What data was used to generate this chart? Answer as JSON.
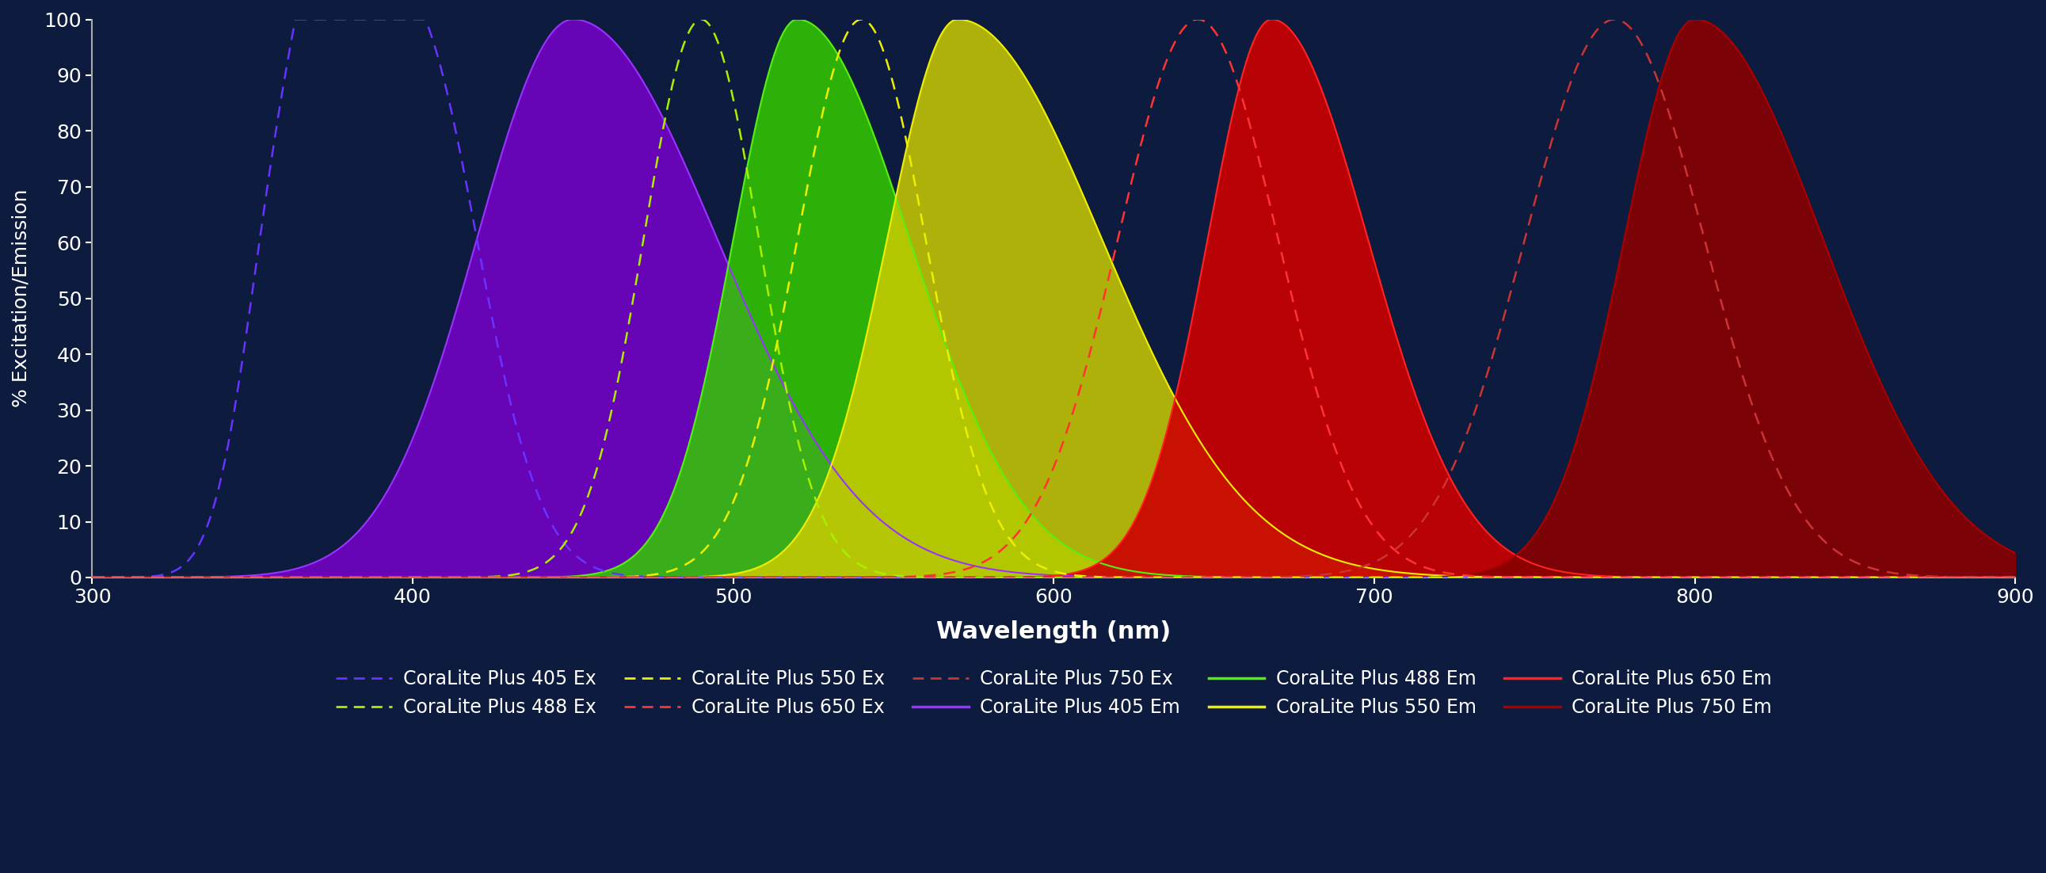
{
  "background_color": "#0d1b3e",
  "plot_bg_color": "#0d1b3e",
  "title": "",
  "xlabel": "Wavelength (nm)",
  "ylabel": "% Excitation/Emission",
  "xlim": [
    300,
    900
  ],
  "ylim": [
    0,
    100
  ],
  "xticks": [
    300,
    400,
    500,
    600,
    700,
    800,
    900
  ],
  "yticks": [
    0,
    10,
    20,
    30,
    40,
    50,
    60,
    70,
    80,
    90,
    100
  ],
  "legend_items": [
    {
      "label": "CoraLite Plus 405 Ex",
      "color": "#7b2fff",
      "linestyle": "dashed"
    },
    {
      "label": "CoraLite Plus 488 Ex",
      "color": "#aaff00",
      "linestyle": "dashed"
    },
    {
      "label": "CoraLite Plus 550 Ex",
      "color": "#ffff00",
      "linestyle": "dashed"
    },
    {
      "label": "CoraLite Plus 650 Ex",
      "color": "#ff2222",
      "linestyle": "dashed"
    },
    {
      "label": "CoraLite Plus 750 Ex",
      "color": "#cc0000",
      "linestyle": "dashed"
    },
    {
      "label": "CoraLite Plus 405 Em",
      "color": "#8800ff",
      "linestyle": "solid"
    },
    {
      "label": "CoraLite Plus 488 Em",
      "color": "#44dd00",
      "linestyle": "solid"
    },
    {
      "label": "CoraLite Plus 550 Em",
      "color": "#dddd00",
      "linestyle": "solid"
    },
    {
      "label": "CoraLite Plus 650 Em",
      "color": "#ff0000",
      "linestyle": "solid"
    },
    {
      "label": "CoraLite Plus 750 Em",
      "color": "#990000",
      "linestyle": "solid"
    }
  ],
  "text_color": "#ffffff",
  "axis_color": "#aaaaaa",
  "grid_color": "#2a3a6e"
}
